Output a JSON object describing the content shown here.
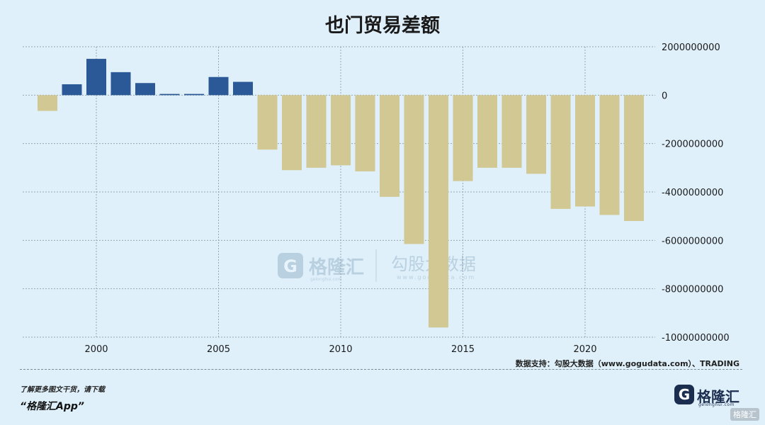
{
  "page": {
    "source_text": "数据支持：勾股大数据（www.gogudata.com）、TRADING",
    "footer_line1": "了解更多图文干货，请下载",
    "footer_line2": "“格隆汇App”",
    "logo_letter": "G",
    "logo_text": "格隆汇",
    "logo_subtext": "gelonghui.com",
    "watermark_left": "格隆汇",
    "watermark_left_sub": "gelonghui.com",
    "watermark_right": "勾股大数据",
    "watermark_right_sub": "www.gogudata.com",
    "corner_badge": "格隆汇"
  },
  "colors": {
    "background": "#dff0fa",
    "positive_bar": "#2b5896",
    "negative_bar": "#d2c893",
    "grid": "#9aa6b0"
  },
  "chart_data": {
    "type": "bar",
    "title": "也门贸易差额",
    "xlabel": "",
    "ylabel": "",
    "categories": [
      1998,
      1999,
      2000,
      2001,
      2002,
      2003,
      2004,
      2005,
      2006,
      2007,
      2008,
      2009,
      2010,
      2011,
      2012,
      2013,
      2014,
      2015,
      2016,
      2017,
      2018,
      2019,
      2020,
      2021,
      2022
    ],
    "values": [
      -650000000,
      450000000,
      1500000000,
      950000000,
      500000000,
      50000000,
      50000000,
      750000000,
      550000000,
      -2250000000,
      -3100000000,
      -3000000000,
      -2900000000,
      -3150000000,
      -4200000000,
      -6150000000,
      -9600000000,
      -3550000000,
      -3000000000,
      -3000000000,
      -3250000000,
      -4700000000,
      -4600000000,
      -4950000000,
      -5200000000
    ],
    "ylim": [
      -10000000000,
      2000000000
    ],
    "yticks": [
      2000000000,
      0,
      -2000000000,
      -4000000000,
      -6000000000,
      -8000000000,
      -10000000000
    ],
    "ytick_labels": [
      "2000000000",
      "0",
      "-2000000000",
      "-4000000000",
      "-6000000000",
      "-8000000000",
      "-10000000000"
    ],
    "xticks": [
      2000,
      2005,
      2010,
      2015,
      2020
    ],
    "xtick_labels": [
      "2000",
      "2005",
      "2010",
      "2015",
      "2020"
    ],
    "grid": true,
    "y_axis_position": "right"
  }
}
